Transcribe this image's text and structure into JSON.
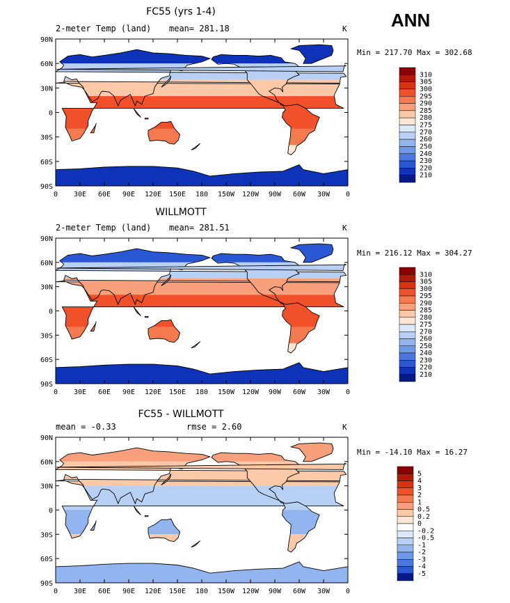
{
  "page": {
    "season_label": "ANN"
  },
  "chart_data": [
    {
      "type": "heatmap",
      "title": "FC55 (yrs 1-4)",
      "left_label": "2-meter Temp (land)",
      "center_label": "mean= 281.18",
      "right_label": "K",
      "stats_label": "Min = 217.70 Max = 302.68",
      "min": 217.7,
      "max": 302.68,
      "x_ticks": [
        "0",
        "30E",
        "60E",
        "90E",
        "120E",
        "150E",
        "180",
        "150W",
        "120W",
        "90W",
        "60W",
        "30W",
        "0"
      ],
      "y_ticks": [
        "90N",
        "60N",
        "30N",
        "0",
        "30S",
        "60S",
        "90S"
      ],
      "colorbar_levels": [
        "310",
        "305",
        "300",
        "295",
        "290",
        "285",
        "280",
        "275",
        "270",
        "260",
        "250",
        "240",
        "230",
        "220",
        "210"
      ],
      "colorbar_colors": [
        "#8b0000",
        "#b01a0a",
        "#d9330f",
        "#f0502a",
        "#f57a4f",
        "#f8a07c",
        "#fbc8a8",
        "#fde6d4",
        "#dce9fa",
        "#b9d0f5",
        "#93b5ef",
        "#6e98e8",
        "#4a78df",
        "#2a57d4",
        "#0f33b8",
        "#071a85"
      ]
    },
    {
      "type": "heatmap",
      "title": "WILLMOTT",
      "left_label": "2-meter Temp (land)",
      "center_label": "mean= 281.51",
      "right_label": "K",
      "stats_label": "Min = 216.12 Max = 304.27",
      "min": 216.12,
      "max": 304.27,
      "x_ticks": [
        "0",
        "30E",
        "60E",
        "90E",
        "120E",
        "150E",
        "180",
        "150W",
        "120W",
        "90W",
        "60W",
        "30W",
        "0"
      ],
      "y_ticks": [
        "90N",
        "60N",
        "30N",
        "0",
        "30S",
        "60S",
        "90S"
      ],
      "colorbar_levels": [
        "310",
        "305",
        "300",
        "295",
        "290",
        "285",
        "280",
        "275",
        "270",
        "260",
        "250",
        "240",
        "230",
        "220",
        "210"
      ],
      "colorbar_colors": [
        "#8b0000",
        "#b01a0a",
        "#d9330f",
        "#f0502a",
        "#f57a4f",
        "#f8a07c",
        "#fbc8a8",
        "#fde6d4",
        "#dce9fa",
        "#b9d0f5",
        "#93b5ef",
        "#6e98e8",
        "#4a78df",
        "#2a57d4",
        "#0f33b8",
        "#071a85"
      ]
    },
    {
      "type": "heatmap",
      "title": "FC55 - WILLMOTT",
      "left_label": "mean =   -0.33",
      "center_label": "rmse =    2.60",
      "right_label": "K",
      "stats_label": "Min = -14.10 Max =  16.27",
      "min": -14.1,
      "max": 16.27,
      "x_ticks": [
        "0",
        "30E",
        "60E",
        "90E",
        "120E",
        "150E",
        "180",
        "150W",
        "120W",
        "90W",
        "60W",
        "30W",
        "0"
      ],
      "y_ticks": [
        "90N",
        "60N",
        "30N",
        "0",
        "30S",
        "60S",
        "90S"
      ],
      "colorbar_levels": [
        "5",
        "4",
        "3",
        "2",
        "1",
        "0.5",
        "0.2",
        "0",
        "-0.2",
        "-0.5",
        "-1",
        "-2",
        "-3",
        "-4",
        "-5"
      ],
      "colorbar_colors": [
        "#8b0000",
        "#b01a0a",
        "#d9330f",
        "#f0502a",
        "#f57a4f",
        "#f8a07c",
        "#fbc8a8",
        "#fde6d4",
        "#ffffff",
        "#dce9fa",
        "#b9d0f5",
        "#93b5ef",
        "#6e98e8",
        "#4a78df",
        "#2a57d4",
        "#071a85"
      ]
    }
  ]
}
